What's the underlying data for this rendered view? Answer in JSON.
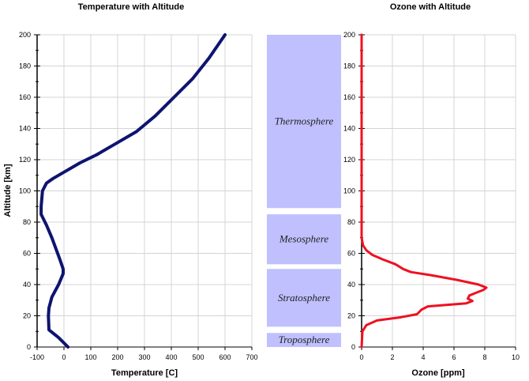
{
  "chart_data": [
    {
      "type": "line",
      "title": "Temperature with Altitude",
      "xlabel": "Temperature [C]",
      "ylabel": "Altitude [km]",
      "xlim": [
        -100,
        700
      ],
      "ylim": [
        0,
        200
      ],
      "xticks": [
        -100,
        0,
        100,
        200,
        300,
        400,
        500,
        600,
        700
      ],
      "yticks": [
        0,
        20,
        40,
        60,
        80,
        100,
        120,
        140,
        160,
        180,
        200
      ],
      "grid": true,
      "series_color": "#0d1470",
      "series": [
        {
          "points": [
            [
              15,
              0
            ],
            [
              -20,
              6
            ],
            [
              -56,
              11
            ],
            [
              -58,
              20
            ],
            [
              -56,
              25
            ],
            [
              -45,
              32
            ],
            [
              -20,
              40
            ],
            [
              -3,
              47
            ],
            [
              -3,
              50
            ],
            [
              -15,
              56
            ],
            [
              -30,
              63
            ],
            [
              -45,
              70
            ],
            [
              -65,
              78
            ],
            [
              -85,
              85
            ],
            [
              -85,
              90
            ],
            [
              -80,
              100
            ],
            [
              -65,
              105
            ],
            [
              -40,
              108
            ],
            [
              0,
              112
            ],
            [
              60,
              118
            ],
            [
              120,
              123
            ],
            [
              190,
              130
            ],
            [
              270,
              138
            ],
            [
              340,
              148
            ],
            [
              410,
              160
            ],
            [
              480,
              172
            ],
            [
              540,
              185
            ],
            [
              580,
              195
            ],
            [
              600,
              200
            ]
          ]
        }
      ]
    },
    {
      "type": "line",
      "title": "Ozone with Altitude",
      "xlabel": "Ozone [ppm]",
      "ylabel": "",
      "xlim": [
        0,
        10
      ],
      "ylim": [
        0,
        200
      ],
      "xticks": [
        0,
        2,
        4,
        6,
        8,
        10
      ],
      "yticks": [
        0,
        20,
        40,
        60,
        80,
        100,
        120,
        140,
        160,
        180,
        200
      ],
      "grid": true,
      "series_color": "#ee1122",
      "series": [
        {
          "points": [
            [
              0,
              0
            ],
            [
              0.05,
              10
            ],
            [
              0.3,
              14
            ],
            [
              1,
              17
            ],
            [
              2.5,
              19
            ],
            [
              3.6,
              21
            ],
            [
              3.9,
              24
            ],
            [
              4.3,
              26
            ],
            [
              5.5,
              27
            ],
            [
              6.8,
              28
            ],
            [
              7.2,
              29.5
            ],
            [
              6.9,
              31
            ],
            [
              7,
              33
            ],
            [
              7.5,
              35
            ],
            [
              7.9,
              36.5
            ],
            [
              8.1,
              38
            ],
            [
              7.6,
              40
            ],
            [
              6.2,
              43
            ],
            [
              4.5,
              46
            ],
            [
              3.2,
              48
            ],
            [
              2.7,
              50
            ],
            [
              2.2,
              53
            ],
            [
              1.4,
              56
            ],
            [
              0.7,
              59
            ],
            [
              0.3,
              62
            ],
            [
              0.1,
              65
            ],
            [
              0,
              70
            ],
            [
              0,
              200
            ]
          ]
        }
      ]
    }
  ],
  "layers": [
    {
      "name": "Thermosphere",
      "from_km": 89,
      "to_km": 200
    },
    {
      "name": "Mesosphere",
      "from_km": 53,
      "to_km": 85
    },
    {
      "name": "Stratosphere",
      "from_km": 13,
      "to_km": 50
    },
    {
      "name": "Troposphere",
      "from_km": 0,
      "to_km": 9
    }
  ],
  "colors": {
    "layer_fill": "#c0c0ff",
    "grid": "#d4d4d4",
    "axis": "#000000"
  }
}
